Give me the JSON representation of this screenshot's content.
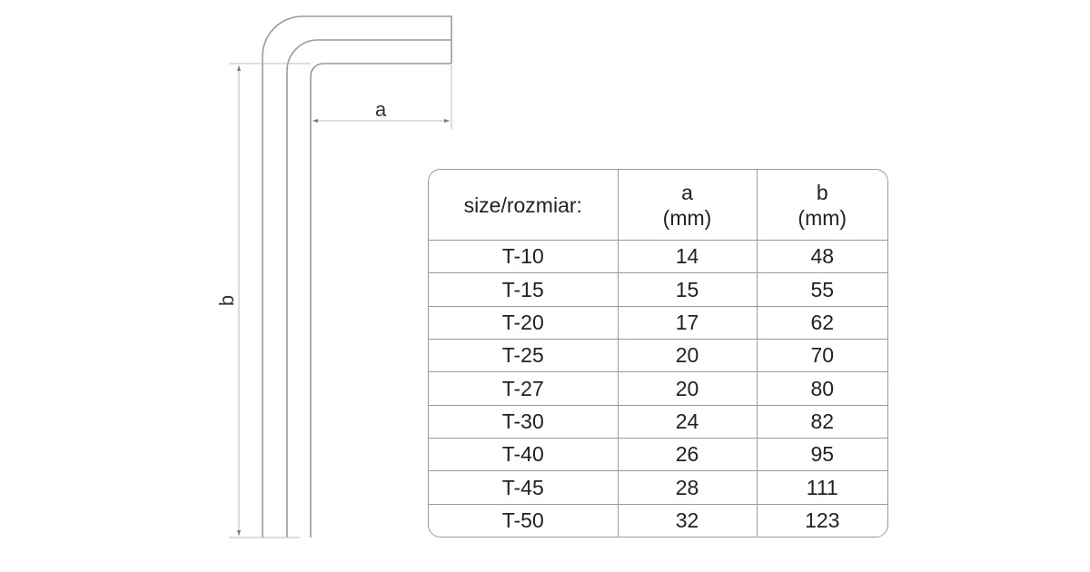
{
  "diagram": {
    "dimension_a_label": "a",
    "dimension_b_label": "b",
    "line_color": "#9a9a9a"
  },
  "table": {
    "headers": [
      {
        "line1": "size/rozmiar:",
        "line2": ""
      },
      {
        "line1": "a",
        "line2": "(mm)"
      },
      {
        "line1": "b",
        "line2": "(mm)"
      }
    ],
    "rows": [
      [
        "T-10",
        "14",
        "48"
      ],
      [
        "T-15",
        "15",
        "55"
      ],
      [
        "T-20",
        "17",
        "62"
      ],
      [
        "T-25",
        "20",
        "70"
      ],
      [
        "T-27",
        "20",
        "80"
      ],
      [
        "T-30",
        "24",
        "82"
      ],
      [
        "T-40",
        "26",
        "95"
      ],
      [
        "T-45",
        "28",
        "111"
      ],
      [
        "T-50",
        "32",
        "123"
      ]
    ]
  }
}
